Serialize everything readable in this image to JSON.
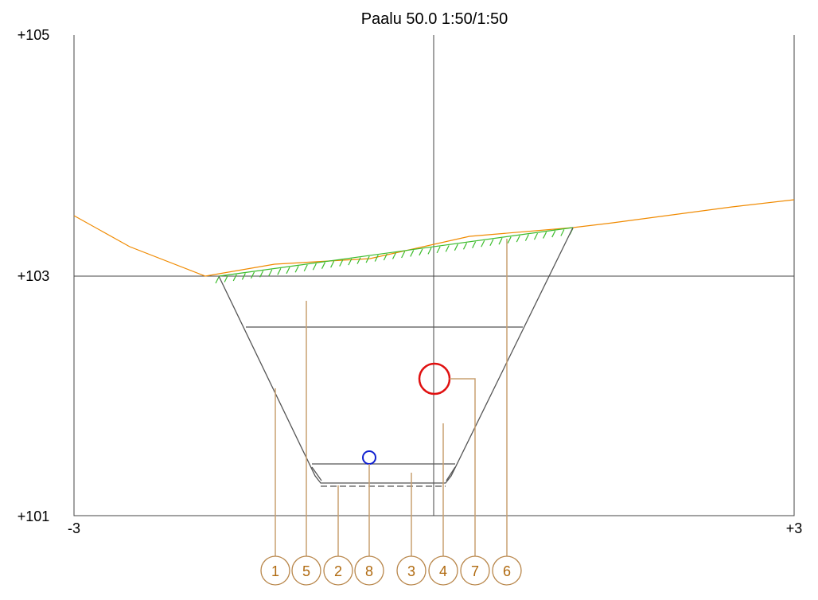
{
  "title": "Paalu 50.0  1:50/1:50",
  "y_labels": [
    "+105",
    "+103",
    "+101"
  ],
  "x_labels": [
    "-3",
    "+3"
  ],
  "callouts": [
    "1",
    "5",
    "2",
    "8",
    "3",
    "4",
    "7",
    "6"
  ]
}
